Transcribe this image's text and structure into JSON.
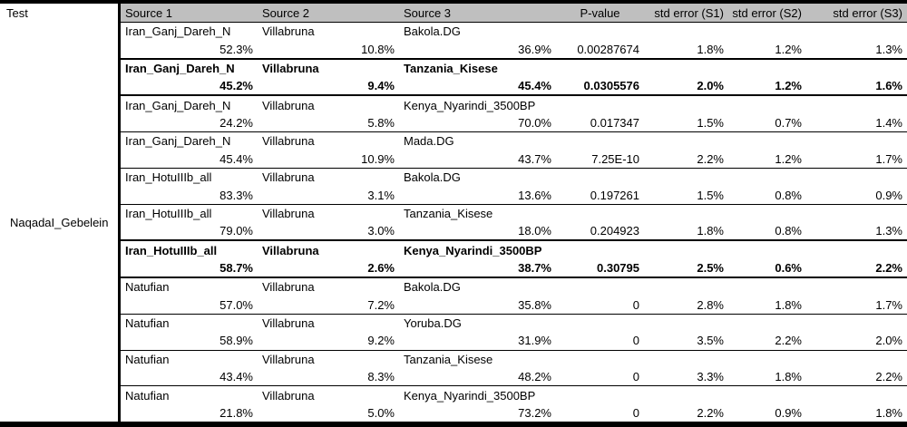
{
  "table": {
    "corner_header": "Test",
    "row_group_label": "NaqadaI_Gebelein",
    "columns": [
      "Source 1",
      "Source 2",
      "Source 3",
      "P-value",
      "std error (S1)",
      "std error (S2)",
      "std error (S3)"
    ],
    "colors": {
      "header_bg": "#BFBFBF",
      "border": "#000000",
      "background": "#FFFFFF"
    },
    "rows": [
      {
        "bold": false,
        "source1": "Iran_Ganj_Dareh_N",
        "source2": "Villabruna",
        "source3": "Bakola.DG",
        "pct1": "52.3%",
        "pct2": "10.8%",
        "pct3": "36.9%",
        "pvalue": "0.00287674",
        "err1": "1.8%",
        "err2": "1.2%",
        "err3": "1.3%"
      },
      {
        "bold": true,
        "source1": "Iran_Ganj_Dareh_N",
        "source2": "Villabruna",
        "source3": "Tanzania_Kisese",
        "pct1": "45.2%",
        "pct2": "9.4%",
        "pct3": "45.4%",
        "pvalue": "0.0305576",
        "err1": "2.0%",
        "err2": "1.2%",
        "err3": "1.6%"
      },
      {
        "bold": false,
        "source1": "Iran_Ganj_Dareh_N",
        "source2": "Villabruna",
        "source3": "Kenya_Nyarindi_3500BP",
        "pct1": "24.2%",
        "pct2": "5.8%",
        "pct3": "70.0%",
        "pvalue": "0.017347",
        "err1": "1.5%",
        "err2": "0.7%",
        "err3": "1.4%"
      },
      {
        "bold": false,
        "source1": "Iran_Ganj_Dareh_N",
        "source2": "Villabruna",
        "source3": "Mada.DG",
        "pct1": "45.4%",
        "pct2": "10.9%",
        "pct3": "43.7%",
        "pvalue": "7.25E-10",
        "err1": "2.2%",
        "err2": "1.2%",
        "err3": "1.7%"
      },
      {
        "bold": false,
        "source1": "Iran_HotuIIIb_all",
        "source2": "Villabruna",
        "source3": "Bakola.DG",
        "pct1": "83.3%",
        "pct2": "3.1%",
        "pct3": "13.6%",
        "pvalue": "0.197261",
        "err1": "1.5%",
        "err2": "0.8%",
        "err3": "0.9%"
      },
      {
        "bold": false,
        "source1": "Iran_HotuIIIb_all",
        "source2": "Villabruna",
        "source3": "Tanzania_Kisese",
        "pct1": "79.0%",
        "pct2": "3.0%",
        "pct3": "18.0%",
        "pvalue": "0.204923",
        "err1": "1.8%",
        "err2": "0.8%",
        "err3": "1.3%"
      },
      {
        "bold": true,
        "source1": "Iran_HotuIIIb_all",
        "source2": "Villabruna",
        "source3": "Kenya_Nyarindi_3500BP",
        "pct1": "58.7%",
        "pct2": "2.6%",
        "pct3": "38.7%",
        "pvalue": "0.30795",
        "err1": "2.5%",
        "err2": "0.6%",
        "err3": "2.2%"
      },
      {
        "bold": false,
        "source1": "Natufian",
        "source2": "Villabruna",
        "source3": "Bakola.DG",
        "pct1": "57.0%",
        "pct2": "7.2%",
        "pct3": "35.8%",
        "pvalue": "0",
        "err1": "2.8%",
        "err2": "1.8%",
        "err3": "1.7%"
      },
      {
        "bold": false,
        "source1": "Natufian",
        "source2": "Villabruna",
        "source3": "Yoruba.DG",
        "pct1": "58.9%",
        "pct2": "9.2%",
        "pct3": "31.9%",
        "pvalue": "0",
        "err1": "3.5%",
        "err2": "2.2%",
        "err3": "2.0%"
      },
      {
        "bold": false,
        "source1": "Natufian",
        "source2": "Villabruna",
        "source3": "Tanzania_Kisese",
        "pct1": "43.4%",
        "pct2": "8.3%",
        "pct3": "48.2%",
        "pvalue": "0",
        "err1": "3.3%",
        "err2": "1.8%",
        "err3": "2.2%"
      },
      {
        "bold": false,
        "source1": "Natufian",
        "source2": "Villabruna",
        "source3": "Kenya_Nyarindi_3500BP",
        "pct1": "21.8%",
        "pct2": "5.0%",
        "pct3": "73.2%",
        "pvalue": "0",
        "err1": "2.2%",
        "err2": "0.9%",
        "err3": "1.8%"
      }
    ]
  }
}
